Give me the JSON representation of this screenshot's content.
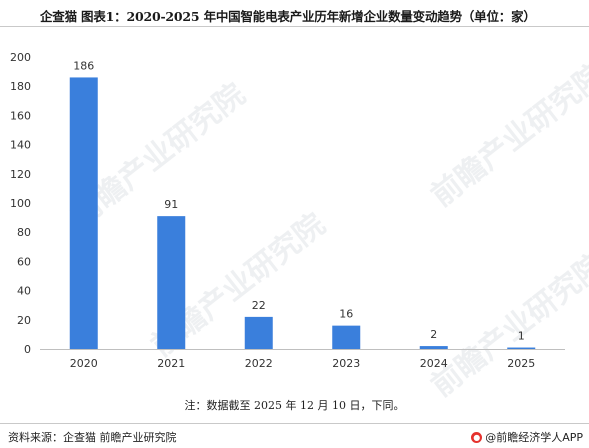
{
  "header": {
    "title": "企查猫  图表1：2020-2025 年中国智能电表产业历年新增企业数量变动趋势（单位：家）"
  },
  "chart_data": {
    "type": "bar",
    "title": "企查猫  图表1：2020-2025 年中国智能电表产业历年新增企业数量变动趋势（单位：家）",
    "categories": [
      "2020",
      "2021",
      "2022",
      "2023",
      "2024",
      "2025"
    ],
    "values": [
      186,
      91,
      22,
      16,
      2,
      1
    ],
    "xlabel": "",
    "ylabel": "",
    "ylim": [
      0,
      200
    ],
    "yticks": [
      0,
      20,
      40,
      60,
      80,
      100,
      120,
      140,
      160,
      180,
      200
    ],
    "grid": false,
    "bar_color": "#3a7fdc"
  },
  "footer": {
    "note": "注：数据截至 2025 年 12 月 10 日，下同。",
    "source": "资料来源：企查猫 前瞻产业研究院",
    "brand": "@前瞻经济学人APP",
    "brand_icon": "qianzhan-logo-icon"
  },
  "watermark": {
    "text": "前瞻产业研究院"
  }
}
